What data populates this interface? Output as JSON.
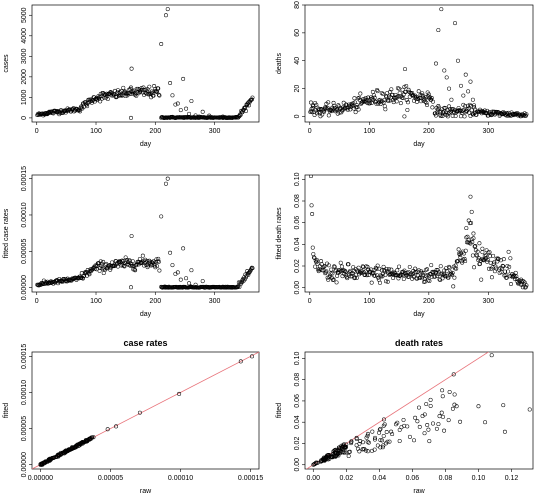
{
  "figure": {
    "panels": [
      {
        "key": "cases",
        "xlabel": "day",
        "ylabel": "cases",
        "title": "",
        "xticks": [
          "0",
          "100",
          "200",
          "300"
        ],
        "yticks": [
          "0",
          "1000",
          "2000",
          "3000",
          "4000",
          "5000"
        ]
      },
      {
        "key": "deaths",
        "xlabel": "day",
        "ylabel": "deaths",
        "title": "",
        "xticks": [
          "0",
          "100",
          "200",
          "300"
        ],
        "yticks": [
          "0",
          "20",
          "40",
          "60",
          "80"
        ]
      },
      {
        "key": "fitted_case_rates",
        "xlabel": "day",
        "ylabel": "fitted case rates",
        "title": "",
        "xticks": [
          "0",
          "100",
          "200",
          "300"
        ],
        "yticks": [
          "0.00000",
          "0.00005",
          "0.00010",
          "0.00015"
        ]
      },
      {
        "key": "fitted_death_rates",
        "xlabel": "day",
        "ylabel": "fitted death rates",
        "title": "",
        "xticks": [
          "0",
          "100",
          "200",
          "300"
        ],
        "yticks": [
          "0.00",
          "0.02",
          "0.04",
          "0.06",
          "0.08",
          "0.10"
        ]
      },
      {
        "key": "case_rates",
        "xlabel": "raw",
        "ylabel": "fitted",
        "title": "case rates",
        "xticks": [
          "0.00000",
          "0.00005",
          "0.00010",
          "0.00015"
        ],
        "yticks": [
          "0.00000",
          "0.00005",
          "0.00010",
          "0.00015"
        ]
      },
      {
        "key": "death_rates",
        "xlabel": "raw",
        "ylabel": "fitted",
        "title": "death rates",
        "xticks": [
          "0.00",
          "0.02",
          "0.04",
          "0.06",
          "0.08",
          "0.10",
          "0.12"
        ],
        "yticks": [
          "0.00",
          "0.02",
          "0.04",
          "0.06",
          "0.08",
          "0.10"
        ]
      }
    ]
  },
  "colors": {
    "points": "#000000",
    "reference_line": "#e8737a"
  },
  "chart_data": [
    {
      "type": "scatter",
      "xlabel": "day",
      "ylabel": "cases",
      "xlim": [
        -8,
        375
      ],
      "ylim": [
        -200,
        5500
      ],
      "generator": "segments",
      "segments": [
        {
          "x0": 1,
          "x1": 20,
          "y0": 150,
          "y1": 250,
          "noise": 40
        },
        {
          "x0": 20,
          "x1": 70,
          "y0": 250,
          "y1": 420,
          "noise": 50
        },
        {
          "x0": 70,
          "x1": 100,
          "y0": 420,
          "y1": 1000,
          "noise": 80
        },
        {
          "x0": 100,
          "x1": 160,
          "y0": 1000,
          "y1": 1250,
          "noise": 110
        },
        {
          "x0": 160,
          "x1": 208,
          "y0": 1250,
          "y1": 1250,
          "noise": 140
        },
        {
          "x0": 210,
          "x1": 340,
          "y0": 20,
          "y1": 20,
          "noise": 15
        },
        {
          "x0": 340,
          "x1": 365,
          "y0": 50,
          "y1": 1000,
          "noise": 60
        }
      ],
      "extra_points": [
        [
          160,
          2400
        ],
        [
          159,
          0
        ],
        [
          210,
          3600
        ],
        [
          218,
          5000
        ],
        [
          221,
          5300
        ],
        [
          225,
          1700
        ],
        [
          229,
          1100
        ],
        [
          234,
          650
        ],
        [
          238,
          700
        ],
        [
          243,
          380
        ],
        [
          247,
          1900
        ],
        [
          252,
          450
        ],
        [
          257,
          200
        ],
        [
          261,
          820
        ],
        [
          268,
          120
        ],
        [
          274,
          60
        ],
        [
          280,
          300
        ],
        [
          291,
          110
        ],
        [
          314,
          60
        ]
      ]
    },
    {
      "type": "scatter",
      "xlabel": "day",
      "ylabel": "deaths",
      "xlim": [
        -8,
        375
      ],
      "ylim": [
        -4,
        80
      ],
      "generator": "segments",
      "segments": [
        {
          "x0": 1,
          "x1": 20,
          "y0": 6,
          "y1": 4,
          "noise": 2
        },
        {
          "x0": 20,
          "x1": 70,
          "y0": 4,
          "y1": 7,
          "noise": 2
        },
        {
          "x0": 70,
          "x1": 100,
          "y0": 7,
          "y1": 12,
          "noise": 2.5
        },
        {
          "x0": 100,
          "x1": 160,
          "y0": 12,
          "y1": 16,
          "noise": 3
        },
        {
          "x0": 160,
          "x1": 208,
          "y0": 15,
          "y1": 13,
          "noise": 3
        },
        {
          "x0": 210,
          "x1": 280,
          "y0": 3,
          "y1": 4,
          "noise": 2
        },
        {
          "x0": 280,
          "x1": 365,
          "y0": 3,
          "y1": 1,
          "noise": 1
        }
      ],
      "extra_points": [
        [
          2,
          10
        ],
        [
          5,
          8
        ],
        [
          160,
          34
        ],
        [
          159,
          0
        ],
        [
          212,
          38
        ],
        [
          216,
          62
        ],
        [
          221,
          77
        ],
        [
          226,
          33
        ],
        [
          230,
          28
        ],
        [
          234,
          20
        ],
        [
          238,
          12
        ],
        [
          244,
          67
        ],
        [
          249,
          40
        ],
        [
          254,
          22
        ],
        [
          258,
          15
        ],
        [
          262,
          30
        ],
        [
          266,
          18
        ],
        [
          270,
          25
        ],
        [
          274,
          12
        ],
        [
          276,
          8
        ]
      ]
    },
    {
      "type": "scatter",
      "xlabel": "day",
      "ylabel": "fitted case rates",
      "xlim": [
        -8,
        375
      ],
      "ylim": [
        -6e-06,
        0.000155
      ],
      "generator": "segments",
      "segments": [
        {
          "x0": 1,
          "x1": 20,
          "y0": 4e-06,
          "y1": 7e-06,
          "noise": 1.2e-06
        },
        {
          "x0": 20,
          "x1": 70,
          "y0": 7e-06,
          "y1": 1.2e-05,
          "noise": 1.5e-06
        },
        {
          "x0": 70,
          "x1": 100,
          "y0": 1.2e-05,
          "y1": 2.8e-05,
          "noise": 2.5e-06
        },
        {
          "x0": 100,
          "x1": 160,
          "y0": 2.8e-05,
          "y1": 3.4e-05,
          "noise": 3.5e-06
        },
        {
          "x0": 160,
          "x1": 208,
          "y0": 3.4e-05,
          "y1": 3.5e-05,
          "noise": 4e-06
        },
        {
          "x0": 210,
          "x1": 340,
          "y0": 6e-07,
          "y1": 6e-07,
          "noise": 4e-07
        },
        {
          "x0": 340,
          "x1": 365,
          "y0": 2e-06,
          "y1": 2.7e-05,
          "noise": 1.8e-06
        }
      ],
      "extra_points": [
        [
          160,
          7.1e-05
        ],
        [
          159,
          5e-07
        ],
        [
          210,
          9.8e-05
        ],
        [
          218,
          0.000143
        ],
        [
          221,
          0.00015
        ],
        [
          225,
          4.8e-05
        ],
        [
          229,
          3.1e-05
        ],
        [
          234,
          1.9e-05
        ],
        [
          238,
          2.1e-05
        ],
        [
          243,
          1.1e-05
        ],
        [
          247,
          5.4e-05
        ],
        [
          252,
          1.3e-05
        ],
        [
          257,
          6e-06
        ],
        [
          261,
          2.4e-05
        ],
        [
          268,
          4e-06
        ],
        [
          280,
          9e-06
        ]
      ]
    },
    {
      "type": "scatter",
      "xlabel": "day",
      "ylabel": "fitted death rates",
      "xlim": [
        -8,
        375
      ],
      "ylim": [
        -0.004,
        0.104
      ],
      "generator": "segments",
      "segments": [
        {
          "x0": 8,
          "x1": 30,
          "y0": 0.022,
          "y1": 0.015,
          "noise": 0.004
        },
        {
          "x0": 30,
          "x1": 100,
          "y0": 0.014,
          "y1": 0.013,
          "noise": 0.004
        },
        {
          "x0": 100,
          "x1": 200,
          "y0": 0.013,
          "y1": 0.012,
          "noise": 0.004
        },
        {
          "x0": 200,
          "x1": 240,
          "y0": 0.012,
          "y1": 0.015,
          "noise": 0.004
        },
        {
          "x0": 240,
          "x1": 265,
          "y0": 0.015,
          "y1": 0.04,
          "noise": 0.007
        },
        {
          "x0": 265,
          "x1": 280,
          "y0": 0.045,
          "y1": 0.035,
          "noise": 0.01
        },
        {
          "x0": 280,
          "x1": 340,
          "y0": 0.026,
          "y1": 0.018,
          "noise": 0.006
        },
        {
          "x0": 340,
          "x1": 365,
          "y0": 0.012,
          "y1": 0.001,
          "noise": 0.002
        }
      ],
      "extra_points": [
        [
          2,
          0.103
        ],
        [
          3,
          0.076
        ],
        [
          4,
          0.068
        ],
        [
          5,
          0.037
        ],
        [
          6,
          0.031
        ],
        [
          7,
          0.028
        ],
        [
          263,
          0.055
        ],
        [
          267,
          0.062
        ],
        [
          270,
          0.084
        ],
        [
          272,
          0.07
        ],
        [
          275,
          0.05
        ],
        [
          285,
          0.041
        ],
        [
          290,
          0.036
        ],
        [
          296,
          0.03
        ]
      ]
    },
    {
      "type": "scatter",
      "xlabel": "raw",
      "ylabel": "fitted",
      "title": "case rates",
      "xlim": [
        -6e-06,
        0.000156
      ],
      "ylim": [
        -6e-06,
        0.000156
      ],
      "generator": "diagonal",
      "reference_line": {
        "slope": 1,
        "intercept": 0
      },
      "diagonal": {
        "from": 0,
        "to": 3.8e-05,
        "count": 150,
        "noise": 8e-07
      },
      "extra_points": [
        [
          4.8e-05,
          4.9e-05
        ],
        [
          5.4e-05,
          5.3e-05
        ],
        [
          7.1e-05,
          7.2e-05
        ],
        [
          9.9e-05,
          9.8e-05
        ],
        [
          0.000143,
          0.000143
        ],
        [
          0.000151,
          0.00015
        ]
      ]
    },
    {
      "type": "scatter",
      "xlabel": "raw",
      "ylabel": "fitted",
      "title": "death rates",
      "xlim": [
        -0.005,
        0.133
      ],
      "ylim": [
        -0.004,
        0.106
      ],
      "generator": "cloud",
      "reference_line": {
        "slope": 1,
        "intercept": 0
      },
      "clusters": [
        {
          "xmin": 0.005,
          "xmax": 0.02,
          "count": 90,
          "ratio_min": 0.55,
          "ratio_max": 1.05
        },
        {
          "xmin": 0.02,
          "xmax": 0.045,
          "count": 45,
          "ratio_min": 0.35,
          "ratio_max": 1.0
        },
        {
          "xmin": 0.045,
          "xmax": 0.09,
          "count": 40,
          "ratio_min": 0.3,
          "ratio_max": 0.85
        },
        {
          "xmin": 0.0,
          "xmax": 0.005,
          "count": 10,
          "ratio_min": 0.6,
          "ratio_max": 1.2
        }
      ],
      "extra_points": [
        [
          0.108,
          0.103
        ],
        [
          0.085,
          0.085
        ],
        [
          0.1,
          0.055
        ],
        [
          0.104,
          0.04
        ],
        [
          0.115,
          0.056
        ],
        [
          0.116,
          0.031
        ],
        [
          0.131,
          0.052
        ],
        [
          0.078,
          0.07
        ],
        [
          0.071,
          0.061
        ]
      ]
    }
  ]
}
